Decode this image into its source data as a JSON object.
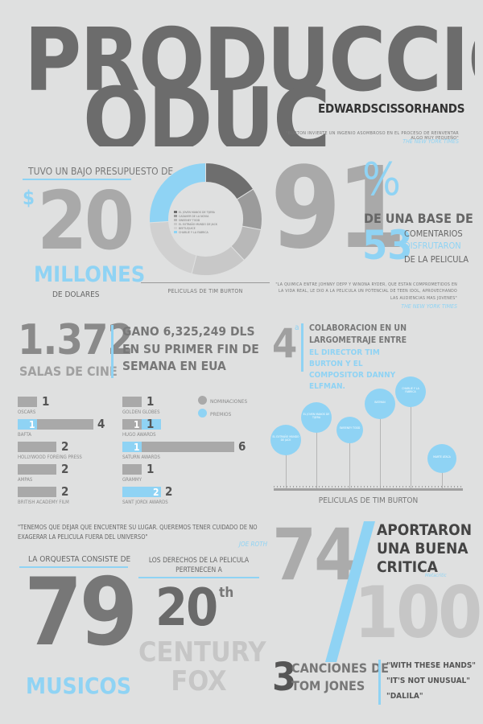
{
  "header": {
    "title_line1": "PRODUCCION",
    "title_line2": "ODUC",
    "brand": "EDWARDSCISSORHANDS",
    "quote": "\"BURTON INVIERTE UN INGENIO ASOMBROSO EN EL PROCESO DE REINVENTAR ALGO MUY PEQUEÑO\"",
    "quote_source": "THE NEW YORK TIMES"
  },
  "budget": {
    "intro": "TUVO UN BAJO PRESUPUESTO DE",
    "currency": "$",
    "amount": "20",
    "unit": "MILLONES",
    "unit_sub": "DE DOLARES"
  },
  "donut": {
    "caption": "PELICULAS DE TIM BURTON",
    "legend": [
      "EL JOVEN MANOS DE TIJERA",
      "CADAVER DE LA NOVIA",
      "SWEENEY TODD",
      "EL EXTRAÑO MUNDO DE JACK",
      "BEETLEJUICE",
      "CHARLIE Y LA FABRICA"
    ],
    "slices": [
      {
        "value": 16,
        "color": "#6e6e6e"
      },
      {
        "value": 12,
        "color": "#9b9b9b"
      },
      {
        "value": 10,
        "color": "#b8b8b8"
      },
      {
        "value": 16,
        "color": "#c8c8c8"
      },
      {
        "value": 20,
        "color": "#d0d0d0"
      },
      {
        "value": 26,
        "color": "#8fd3f4"
      }
    ]
  },
  "ratings": {
    "percent_value": "91",
    "percent_sign": "%",
    "base_text": "DE UNA BASE DE",
    "base_number": "53",
    "line_a": "COMENTARIOS",
    "line_b": "DISFRUTARON",
    "line_c": "DE LA PELICULA",
    "quote": "\"LA QUIMICA ENTRE JOHNNY DEPP Y WINONA RYDER, QUE ESTAN COMPROMETIDOS EN LA VIDA REAL, LE DIO A LA PELICULA UN POTENCIAL DE TEEN IDOL, APROVECHANDO LAS AUDIENCIAS MAS JOVENES\"",
    "source": "THE NEW YORK TIMES"
  },
  "cinemas": {
    "number": "1.372",
    "label": "SALAS DE CINE",
    "weekend": "GANO 6,325,249 DLS EN SU PRIMER FIN DE SEMANA EN EUA"
  },
  "collab": {
    "ordinal": "4",
    "sup": "a",
    "text_a": "COLABORACION EN UN LARGOMETRAJE ENTRE",
    "text_b": "EL DIRECTOR TIM BURTON Y EL COMPOSITOR DANNY ELFMAN."
  },
  "awards": {
    "legend_nominations": "NOMINACIONES",
    "legend_awards": "PREMIOS",
    "left": [
      {
        "name": "OSCARS",
        "nominations": 1,
        "awards": 0
      },
      {
        "name": "BAFTA",
        "nominations": 4,
        "awards": 1
      },
      {
        "name": "HOLLYWOOD FOREING PRESS",
        "nominations": 2,
        "awards": 0
      },
      {
        "name": "AMPAS",
        "nominations": 2,
        "awards": 0
      },
      {
        "name": "BRITISH ACADEMY FILM",
        "nominations": 2,
        "awards": 0
      }
    ],
    "right": [
      {
        "name": "GOLDEN GLOBES",
        "nominations": 1,
        "awards": 0
      },
      {
        "name": "HUGO AWARDS",
        "nominations": 1,
        "awards": 1
      },
      {
        "name": "SATURN AWARDS",
        "nominations": 6,
        "awards": 1
      },
      {
        "name": "GRAMMY",
        "nominations": 1,
        "awards": 0
      },
      {
        "name": "SANT JORDI AWARDS",
        "nominations": 2,
        "awards": 2
      }
    ],
    "labels": {
      "l0n": "1",
      "l1n": "4",
      "l1a": "1",
      "l2n": "2",
      "l3n": "2",
      "l4n": "2",
      "r0n": "1",
      "r1n": "1",
      "r1a": "1",
      "r2n": "6",
      "r2a": "1",
      "r3n": "1",
      "r4n": "2",
      "r4a": "2"
    }
  },
  "timeline": {
    "caption": "PELICULAS DE TIM BURTON",
    "films": [
      {
        "label": "EL EXTRAÑO MUNDO DE JACK"
      },
      {
        "label": "EL JOVEN MANOS DE TIJERA"
      },
      {
        "label": "SWEENEY TODD"
      },
      {
        "label": "BATMAN"
      },
      {
        "label": "CHARLIE Y LA FABRICA"
      },
      {
        "label": "BEETLEJUICE"
      },
      {
        "label": "MARTE ATACA"
      }
    ]
  },
  "quote_roth": {
    "text": "\"TENEMOS QUE DEJAR QUE ENCUENTRE SU LUGAR. QUEREMOS TENER CUIDADO DE NO EXAGERAR LA PELICULA FUERA DEL UNIVERSO\"",
    "author": "JOE ROTH"
  },
  "orchestra": {
    "intro": "LA ORQUESTA CONSISTE DE",
    "number": "79",
    "label": "MUSICOS"
  },
  "rights": {
    "intro": "LOS DERECHOS DE LA PELICULA PERTENECEN A",
    "number": "20",
    "sup": "th",
    "line_a": "CENTURY",
    "line_b": "FOX"
  },
  "critics": {
    "top": "74",
    "bottom": "100",
    "text": "APORTARON UNA BUENA CRITICA",
    "source": "Metacritic"
  },
  "songs": {
    "number": "3",
    "label_a": "CANCIONES DE",
    "label_b": "TOM JONES",
    "titles": [
      "\"WITH THESE HANDS\"",
      "\"IT'S NOT UNUSUAL\"",
      "\"DALILA\""
    ]
  }
}
